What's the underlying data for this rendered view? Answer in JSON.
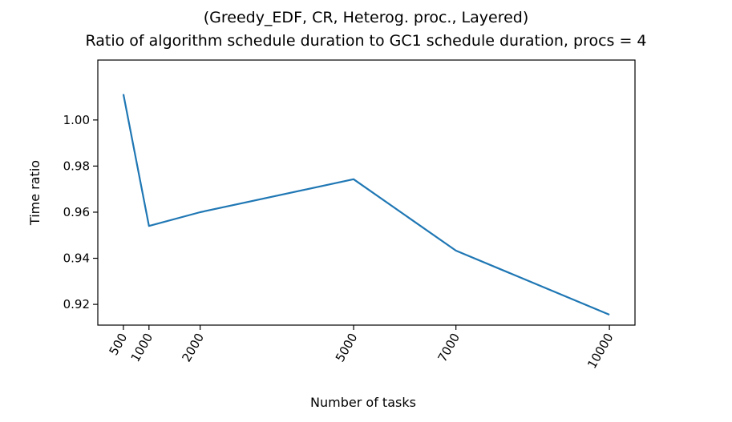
{
  "chart_data": {
    "type": "line",
    "title_line1": "(Greedy_EDF, CR, Heterog. proc., Layered)",
    "title_line2": "Ratio of algorithm schedule duration to GC1 schedule duration, procs = 4",
    "xlabel": "Number of tasks",
    "ylabel": "Time ratio",
    "x": [
      500,
      1000,
      2000,
      5000,
      7000,
      10000
    ],
    "xtick_labels": [
      "500",
      "1000",
      "2000",
      "5000",
      "7000",
      "10000"
    ],
    "yticks": [
      0.92,
      0.94,
      0.96,
      0.98,
      1.0
    ],
    "ytick_labels": [
      "0.92",
      "0.94",
      "0.96",
      "0.98",
      "1.00"
    ],
    "xlim": [
      0,
      10500
    ],
    "ylim": [
      0.911,
      1.026
    ],
    "series": [
      {
        "values": [
          1.0112,
          0.954,
          0.96,
          0.9743,
          0.9433,
          0.9155
        ],
        "color": "#1f77b4"
      }
    ],
    "grid": false,
    "x_tick_rotation": "60 degrees"
  }
}
